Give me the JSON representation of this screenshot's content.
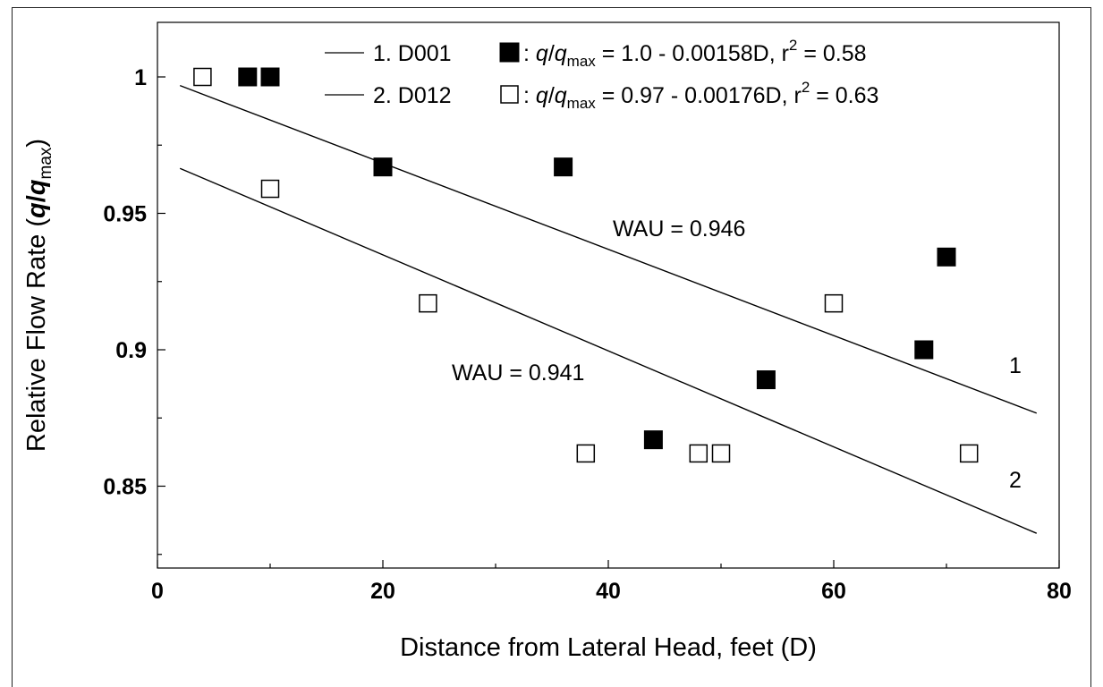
{
  "chart_data": {
    "type": "scatter",
    "xlabel": "Distance from Lateral Head, feet (D)",
    "ylabel": {
      "prefix": "Relative Flow Rate (",
      "q1": "q",
      "slash": "/",
      "q2": "q",
      "sub": "max",
      "suffix": ")"
    },
    "xlim": [
      0,
      80
    ],
    "ylim": [
      0.82,
      1.02
    ],
    "xticks": [
      0,
      20,
      40,
      60,
      80
    ],
    "yticks": [
      0.85,
      0.9,
      0.95,
      1
    ],
    "xtick_labels": [
      "0",
      "20",
      "40",
      "60",
      "80"
    ],
    "ytick_labels": [
      "0.85",
      "0.9",
      "0.95",
      "1"
    ],
    "grid": false,
    "legend_position": "top",
    "series": [
      {
        "name": "D001",
        "marker": "filled-square",
        "color": "#000000",
        "points": [
          [
            8,
            1.0
          ],
          [
            10,
            1.0
          ],
          [
            20,
            0.967
          ],
          [
            36,
            0.967
          ],
          [
            44,
            0.867
          ],
          [
            54,
            0.889
          ],
          [
            68,
            0.9
          ],
          [
            70,
            0.934
          ]
        ],
        "fit": {
          "intercept": 1.0,
          "slope": -0.00158,
          "x_range": [
            2,
            78
          ]
        },
        "legend": {
          "index": "1. D001",
          "colon": ":",
          "q1": "q",
          "slash": "/",
          "q2": "q",
          "sub": "max",
          "equation": "= 1.0 - 0.00158D, r",
          "sup": "2",
          "r2_value": "= 0.58"
        },
        "line_label": "1",
        "wau_label": "WAU = 0.946"
      },
      {
        "name": "D012",
        "marker": "open-square",
        "color": "#000000",
        "points": [
          [
            4,
            1.0
          ],
          [
            10,
            0.959
          ],
          [
            24,
            0.917
          ],
          [
            38,
            0.862
          ],
          [
            48,
            0.862
          ],
          [
            50,
            0.862
          ],
          [
            60,
            0.917
          ],
          [
            72,
            0.862
          ]
        ],
        "fit": {
          "intercept": 0.97,
          "slope": -0.00176,
          "x_range": [
            2,
            78
          ]
        },
        "legend": {
          "index": "2. D012",
          "colon": ":",
          "q1": "q",
          "slash": "/",
          "q2": "q",
          "sub": "max",
          "equation": "= 0.97 - 0.00176D, r",
          "sup": "2",
          "r2_value": "= 0.63"
        },
        "line_label": "2",
        "wau_label": "WAU = 0.941"
      }
    ]
  }
}
